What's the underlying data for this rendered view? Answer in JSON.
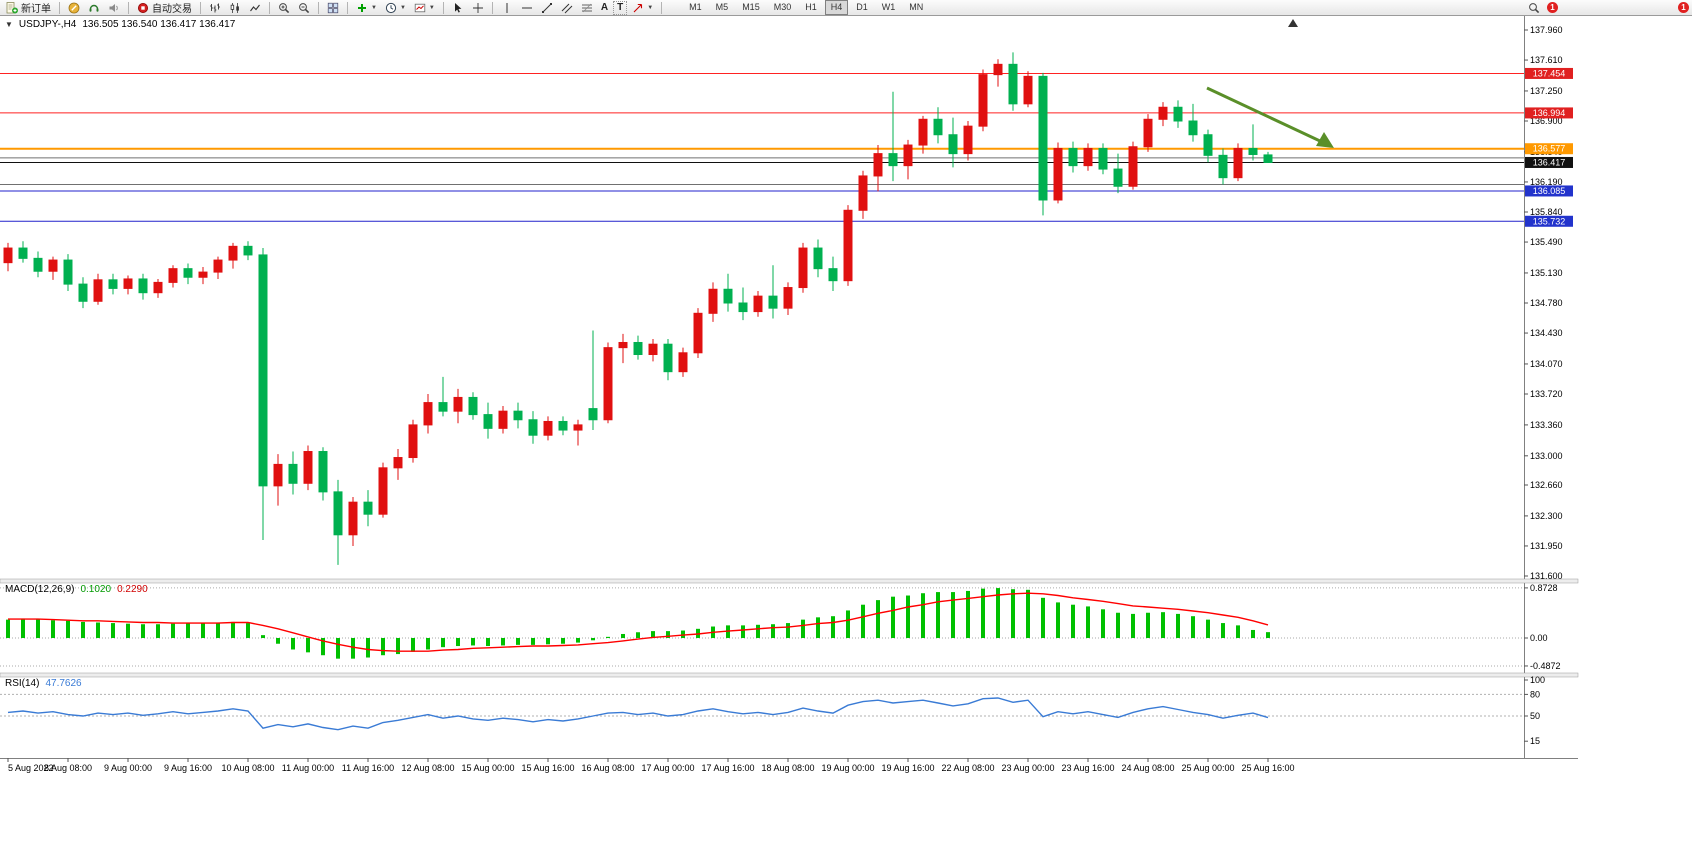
{
  "toolbar": {
    "new_order_label": "新订单",
    "autotrade_label": "自动交易",
    "text_tool_label": "A",
    "label_tool_label": "T",
    "timeframes": [
      "M1",
      "M5",
      "M15",
      "M30",
      "H1",
      "H4",
      "D1",
      "W1",
      "MN"
    ],
    "active_timeframe": "H4",
    "notification_badge": "1"
  },
  "chart": {
    "symbol_label": "USDJPY-,H4",
    "ohlc_label": "136.505 136.540 136.417 136.417",
    "macd_label": "MACD(12,26,9)",
    "macd_main_value": "0.1020",
    "macd_signal_value": "0.2290",
    "rsi_label": "RSI(14)",
    "rsi_value": "47.7626"
  },
  "chart_data": {
    "type": "candlestick",
    "symbol": "USDJPY-",
    "timeframe": "H4",
    "up_color": "#e01010",
    "down_color": "#00b050",
    "price_axis": {
      "min": 131.6,
      "max": 137.96,
      "ticks": [
        "137.960",
        "137.610",
        "137.250",
        "136.900",
        "136.540",
        "136.190",
        "135.840",
        "135.490",
        "135.130",
        "134.780",
        "134.430",
        "134.070",
        "133.720",
        "133.360",
        "133.000",
        "132.660",
        "132.300",
        "131.950",
        "131.600"
      ]
    },
    "time_labels": [
      "5 Aug 2022",
      "8 Aug 08:00",
      "9 Aug 00:00",
      "9 Aug 16:00",
      "10 Aug 08:00",
      "11 Aug 00:00",
      "11 Aug 16:00",
      "12 Aug 08:00",
      "15 Aug 00:00",
      "15 Aug 16:00",
      "16 Aug 08:00",
      "17 Aug 00:00",
      "17 Aug 16:00",
      "18 Aug 08:00",
      "19 Aug 00:00",
      "19 Aug 16:00",
      "22 Aug 08:00",
      "23 Aug 00:00",
      "23 Aug 16:00",
      "24 Aug 08:00",
      "25 Aug 00:00",
      "25 Aug 16:00"
    ],
    "candles": [
      [
        135.25,
        135.48,
        135.15,
        135.42
      ],
      [
        135.42,
        135.5,
        135.25,
        135.3
      ],
      [
        135.3,
        135.38,
        135.08,
        135.15
      ],
      [
        135.15,
        135.32,
        135.05,
        135.28
      ],
      [
        135.28,
        135.35,
        134.92,
        135.0
      ],
      [
        135.0,
        135.08,
        134.72,
        134.8
      ],
      [
        134.8,
        135.12,
        134.76,
        135.05
      ],
      [
        135.05,
        135.12,
        134.88,
        134.95
      ],
      [
        134.95,
        135.1,
        134.88,
        135.06
      ],
      [
        135.06,
        135.12,
        134.82,
        134.9
      ],
      [
        134.9,
        135.06,
        134.84,
        135.02
      ],
      [
        135.02,
        135.22,
        134.96,
        135.18
      ],
      [
        135.18,
        135.24,
        135.0,
        135.08
      ],
      [
        135.08,
        135.2,
        135.0,
        135.14
      ],
      [
        135.14,
        135.32,
        135.06,
        135.28
      ],
      [
        135.28,
        135.48,
        135.18,
        135.44
      ],
      [
        135.44,
        135.5,
        135.28,
        135.34
      ],
      [
        135.34,
        135.42,
        132.02,
        132.65
      ],
      [
        132.65,
        133.02,
        132.42,
        132.9
      ],
      [
        132.9,
        133.05,
        132.55,
        132.68
      ],
      [
        132.68,
        133.12,
        132.6,
        133.05
      ],
      [
        133.05,
        133.1,
        132.48,
        132.58
      ],
      [
        132.58,
        132.72,
        131.73,
        132.08
      ],
      [
        132.08,
        132.52,
        131.95,
        132.46
      ],
      [
        132.46,
        132.6,
        132.18,
        132.32
      ],
      [
        132.32,
        132.92,
        132.28,
        132.86
      ],
      [
        132.86,
        133.08,
        132.72,
        132.98
      ],
      [
        132.98,
        133.42,
        132.92,
        133.36
      ],
      [
        133.36,
        133.72,
        133.26,
        133.62
      ],
      [
        133.62,
        133.92,
        133.46,
        133.52
      ],
      [
        133.52,
        133.78,
        133.38,
        133.68
      ],
      [
        133.68,
        133.74,
        133.42,
        133.48
      ],
      [
        133.48,
        133.62,
        133.2,
        133.32
      ],
      [
        133.32,
        133.58,
        133.26,
        133.52
      ],
      [
        133.52,
        133.62,
        133.32,
        133.42
      ],
      [
        133.42,
        133.52,
        133.14,
        133.24
      ],
      [
        133.24,
        133.46,
        133.18,
        133.4
      ],
      [
        133.4,
        133.46,
        133.24,
        133.3
      ],
      [
        133.3,
        133.42,
        133.12,
        133.36
      ],
      [
        133.55,
        134.46,
        133.3,
        133.42
      ],
      [
        133.42,
        134.32,
        133.38,
        134.26
      ],
      [
        134.26,
        134.42,
        134.08,
        134.32
      ],
      [
        134.32,
        134.4,
        134.12,
        134.18
      ],
      [
        134.18,
        134.36,
        134.1,
        134.3
      ],
      [
        134.3,
        134.36,
        133.88,
        133.98
      ],
      [
        133.98,
        134.26,
        133.92,
        134.2
      ],
      [
        134.2,
        134.72,
        134.14,
        134.66
      ],
      [
        134.66,
        135.02,
        134.56,
        134.94
      ],
      [
        134.94,
        135.12,
        134.68,
        134.78
      ],
      [
        134.78,
        134.96,
        134.58,
        134.68
      ],
      [
        134.68,
        134.92,
        134.62,
        134.86
      ],
      [
        134.86,
        135.22,
        134.6,
        134.72
      ],
      [
        134.72,
        135.02,
        134.64,
        134.96
      ],
      [
        134.96,
        135.48,
        134.9,
        135.42
      ],
      [
        135.42,
        135.52,
        135.08,
        135.18
      ],
      [
        135.18,
        135.32,
        134.92,
        135.04
      ],
      [
        135.04,
        135.92,
        134.98,
        135.86
      ],
      [
        135.86,
        136.32,
        135.76,
        136.26
      ],
      [
        136.26,
        136.62,
        136.08,
        136.52
      ],
      [
        136.52,
        137.24,
        136.2,
        136.38
      ],
      [
        136.38,
        136.68,
        136.22,
        136.62
      ],
      [
        136.62,
        136.96,
        136.52,
        136.92
      ],
      [
        136.92,
        137.06,
        136.64,
        136.74
      ],
      [
        136.74,
        136.94,
        136.36,
        136.52
      ],
      [
        136.52,
        136.9,
        136.44,
        136.84
      ],
      [
        136.84,
        137.5,
        136.78,
        137.44
      ],
      [
        137.44,
        137.62,
        137.3,
        137.56
      ],
      [
        137.56,
        137.7,
        137.02,
        137.1
      ],
      [
        137.1,
        137.48,
        137.06,
        137.42
      ],
      [
        137.42,
        137.46,
        135.8,
        135.98
      ],
      [
        135.98,
        136.65,
        135.94,
        136.58
      ],
      [
        136.58,
        136.66,
        136.3,
        136.38
      ],
      [
        136.38,
        136.64,
        136.32,
        136.58
      ],
      [
        136.58,
        136.64,
        136.28,
        136.34
      ],
      [
        136.34,
        136.52,
        136.06,
        136.14
      ],
      [
        136.14,
        136.66,
        136.1,
        136.6
      ],
      [
        136.6,
        136.98,
        136.54,
        136.92
      ],
      [
        136.92,
        137.12,
        136.84,
        137.06
      ],
      [
        137.06,
        137.14,
        136.82,
        136.9
      ],
      [
        136.9,
        137.1,
        136.66,
        136.74
      ],
      [
        136.74,
        136.8,
        136.42,
        136.5
      ],
      [
        136.5,
        136.58,
        136.16,
        136.24
      ],
      [
        136.24,
        136.64,
        136.2,
        136.58
      ],
      [
        136.58,
        136.86,
        136.44,
        136.51
      ],
      [
        136.505,
        136.54,
        136.417,
        136.417
      ]
    ],
    "hlines": [
      {
        "price": 137.454,
        "color": "#ff2222",
        "width": 1,
        "badge": "137.454",
        "badge_bg": "#e02020"
      },
      {
        "price": 136.994,
        "color": "#ff2222",
        "width": 1,
        "badge": "136.994",
        "badge_bg": "#e02020"
      },
      {
        "price": 136.577,
        "color": "#ff9900",
        "width": 2,
        "badge": "136.577",
        "badge_bg": "#ff9900"
      },
      {
        "price": 136.47,
        "color": "#707070",
        "width": 1
      },
      {
        "price": 136.417,
        "color": "#111111",
        "width": 1,
        "badge": "136.417",
        "badge_bg": "#111111"
      },
      {
        "price": 136.16,
        "color": "#707070",
        "width": 1
      },
      {
        "price": 136.085,
        "color": "#2222cc",
        "width": 1,
        "badge": "136.085",
        "badge_bg": "#2233cc"
      },
      {
        "price": 135.732,
        "color": "#2222cc",
        "width": 1,
        "badge": "135.732",
        "badge_bg": "#2233cc"
      }
    ],
    "arrow": {
      "color": "#5a8f29"
    },
    "macd": {
      "scale": [
        "0.8728",
        "0.00",
        "-0.4872"
      ],
      "scale_values": [
        0.8728,
        0,
        -0.4872
      ],
      "histogram_color": "#00c000",
      "signal_color": "#ff0000",
      "histogram": [
        0.32,
        0.34,
        0.33,
        0.31,
        0.3,
        0.28,
        0.27,
        0.26,
        0.25,
        0.24,
        0.24,
        0.25,
        0.26,
        0.26,
        0.27,
        0.28,
        0.26,
        0.05,
        -0.1,
        -0.2,
        -0.25,
        -0.3,
        -0.36,
        -0.36,
        -0.34,
        -0.3,
        -0.28,
        -0.24,
        -0.2,
        -0.16,
        -0.14,
        -0.13,
        -0.14,
        -0.13,
        -0.12,
        -0.12,
        -0.11,
        -0.1,
        -0.08,
        -0.04,
        0.02,
        0.07,
        0.1,
        0.12,
        0.12,
        0.13,
        0.16,
        0.2,
        0.22,
        0.22,
        0.23,
        0.24,
        0.26,
        0.32,
        0.36,
        0.38,
        0.48,
        0.58,
        0.66,
        0.72,
        0.74,
        0.78,
        0.8,
        0.8,
        0.82,
        0.86,
        0.87,
        0.85,
        0.84,
        0.7,
        0.62,
        0.58,
        0.55,
        0.5,
        0.44,
        0.42,
        0.44,
        0.45,
        0.42,
        0.38,
        0.32,
        0.26,
        0.22,
        0.14,
        0.102
      ],
      "signal": [
        0.33,
        0.33,
        0.33,
        0.32,
        0.31,
        0.3,
        0.3,
        0.29,
        0.28,
        0.27,
        0.27,
        0.26,
        0.26,
        0.26,
        0.26,
        0.27,
        0.27,
        0.22,
        0.16,
        0.09,
        0.02,
        -0.05,
        -0.11,
        -0.16,
        -0.2,
        -0.22,
        -0.23,
        -0.23,
        -0.23,
        -0.21,
        -0.2,
        -0.18,
        -0.17,
        -0.16,
        -0.15,
        -0.14,
        -0.14,
        -0.13,
        -0.12,
        -0.1,
        -0.08,
        -0.05,
        -0.02,
        0.01,
        0.03,
        0.05,
        0.07,
        0.1,
        0.12,
        0.14,
        0.16,
        0.18,
        0.19,
        0.22,
        0.25,
        0.27,
        0.31,
        0.37,
        0.43,
        0.48,
        0.54,
        0.58,
        0.63,
        0.66,
        0.69,
        0.72,
        0.75,
        0.77,
        0.78,
        0.77,
        0.74,
        0.7,
        0.67,
        0.64,
        0.6,
        0.56,
        0.54,
        0.52,
        0.5,
        0.47,
        0.44,
        0.4,
        0.36,
        0.3,
        0.229
      ]
    },
    "rsi": {
      "scale_labels": [
        "100",
        "80",
        "50",
        "15"
      ],
      "scale_values": [
        100,
        80,
        50,
        15
      ],
      "levels": [
        80,
        50
      ],
      "line_color": "#3a7bd5",
      "values": [
        55,
        57,
        54,
        56,
        52,
        50,
        54,
        52,
        54,
        51,
        53,
        56,
        53,
        55,
        57,
        60,
        57,
        33,
        38,
        35,
        39,
        34,
        31,
        36,
        33,
        41,
        44,
        48,
        52,
        47,
        50,
        46,
        44,
        47,
        45,
        42,
        45,
        43,
        46,
        50,
        54,
        55,
        52,
        54,
        50,
        52,
        57,
        60,
        56,
        53,
        55,
        52,
        55,
        61,
        57,
        54,
        65,
        70,
        72,
        68,
        70,
        72,
        68,
        64,
        67,
        74,
        75,
        69,
        72,
        49,
        56,
        53,
        56,
        52,
        48,
        55,
        60,
        63,
        59,
        55,
        52,
        47,
        51,
        54,
        47.76
      ]
    }
  }
}
